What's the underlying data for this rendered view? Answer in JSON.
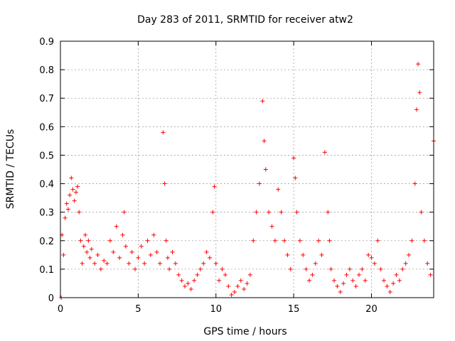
{
  "chart_data": {
    "type": "scatter",
    "title": "Day 283 of 2011, SRMTID for receiver atw2",
    "xlabel": "GPS time / hours",
    "ylabel": "SRMTID / TECUs",
    "xlim": [
      0,
      24
    ],
    "ylim": [
      0,
      0.9
    ],
    "xticks": [
      0,
      5,
      10,
      15,
      20
    ],
    "xtick_labels": [
      "0",
      "5",
      "10",
      "15",
      "20"
    ],
    "yticks": [
      0,
      0.1,
      0.2,
      0.3,
      0.4,
      0.5,
      0.6,
      0.7,
      0.8,
      0.9
    ],
    "ytick_labels": [
      "0",
      "0.1",
      "0.2",
      "0.3",
      "0.4",
      "0.5",
      "0.6",
      "0.7",
      "0.8",
      "0.9"
    ],
    "grid": true,
    "marker": "+",
    "color": "#ff0000",
    "series": [
      {
        "name": "SRMTID",
        "x": [
          0.05,
          0.1,
          0.2,
          0.3,
          0.4,
          0.5,
          0.6,
          0.7,
          0.8,
          0.9,
          1.0,
          1.1,
          1.2,
          1.3,
          1.4,
          1.5,
          1.6,
          1.7,
          1.8,
          1.9,
          2.0,
          2.2,
          2.4,
          2.6,
          2.8,
          3.0,
          3.2,
          3.4,
          3.6,
          3.8,
          4.0,
          4.1,
          4.2,
          4.4,
          4.6,
          4.8,
          5.0,
          5.2,
          5.4,
          5.6,
          5.8,
          6.0,
          6.2,
          6.4,
          6.6,
          6.7,
          6.8,
          6.9,
          7.0,
          7.2,
          7.4,
          7.6,
          7.8,
          8.0,
          8.2,
          8.4,
          8.6,
          8.8,
          9.0,
          9.2,
          9.4,
          9.6,
          9.8,
          9.9,
          10.0,
          10.2,
          10.4,
          10.6,
          10.8,
          11.0,
          11.2,
          11.4,
          11.6,
          11.8,
          12.0,
          12.2,
          12.4,
          12.6,
          12.8,
          13.0,
          13.1,
          13.2,
          13.4,
          13.6,
          13.8,
          14.0,
          14.2,
          14.4,
          14.6,
          14.8,
          15.0,
          15.1,
          15.2,
          15.4,
          15.6,
          15.8,
          16.0,
          16.2,
          16.4,
          16.6,
          16.8,
          17.0,
          17.2,
          17.3,
          17.4,
          17.6,
          17.8,
          18.0,
          18.2,
          18.4,
          18.6,
          18.8,
          19.0,
          19.2,
          19.4,
          19.6,
          19.8,
          20.0,
          20.2,
          20.4,
          20.6,
          20.8,
          21.0,
          21.2,
          21.4,
          21.6,
          21.8,
          22.0,
          22.2,
          22.4,
          22.6,
          22.8,
          22.9,
          23.0,
          23.1,
          23.2,
          23.4,
          23.6,
          23.8,
          24.0
        ],
        "y": [
          0.0,
          0.22,
          0.15,
          0.28,
          0.33,
          0.31,
          0.36,
          0.42,
          0.38,
          0.34,
          0.37,
          0.39,
          0.3,
          0.2,
          0.12,
          0.18,
          0.22,
          0.16,
          0.2,
          0.14,
          0.17,
          0.12,
          0.15,
          0.1,
          0.13,
          0.12,
          0.2,
          0.16,
          0.25,
          0.14,
          0.22,
          0.3,
          0.18,
          0.12,
          0.16,
          0.1,
          0.14,
          0.18,
          0.12,
          0.2,
          0.15,
          0.22,
          0.16,
          0.12,
          0.58,
          0.4,
          0.2,
          0.14,
          0.1,
          0.16,
          0.12,
          0.08,
          0.06,
          0.04,
          0.05,
          0.03,
          0.06,
          0.08,
          0.1,
          0.12,
          0.16,
          0.14,
          0.3,
          0.39,
          0.12,
          0.06,
          0.1,
          0.08,
          0.04,
          0.01,
          0.02,
          0.04,
          0.06,
          0.03,
          0.05,
          0.08,
          0.2,
          0.3,
          0.4,
          0.69,
          0.55,
          0.45,
          0.3,
          0.25,
          0.2,
          0.38,
          0.3,
          0.2,
          0.15,
          0.1,
          0.49,
          0.42,
          0.3,
          0.2,
          0.15,
          0.1,
          0.06,
          0.08,
          0.12,
          0.2,
          0.15,
          0.51,
          0.3,
          0.2,
          0.1,
          0.06,
          0.04,
          0.02,
          0.05,
          0.08,
          0.1,
          0.06,
          0.04,
          0.08,
          0.1,
          0.06,
          0.15,
          0.14,
          0.12,
          0.2,
          0.1,
          0.06,
          0.04,
          0.02,
          0.05,
          0.08,
          0.06,
          0.1,
          0.12,
          0.15,
          0.2,
          0.4,
          0.66,
          0.82,
          0.72,
          0.3,
          0.2,
          0.12,
          0.08,
          0.55
        ]
      }
    ]
  }
}
